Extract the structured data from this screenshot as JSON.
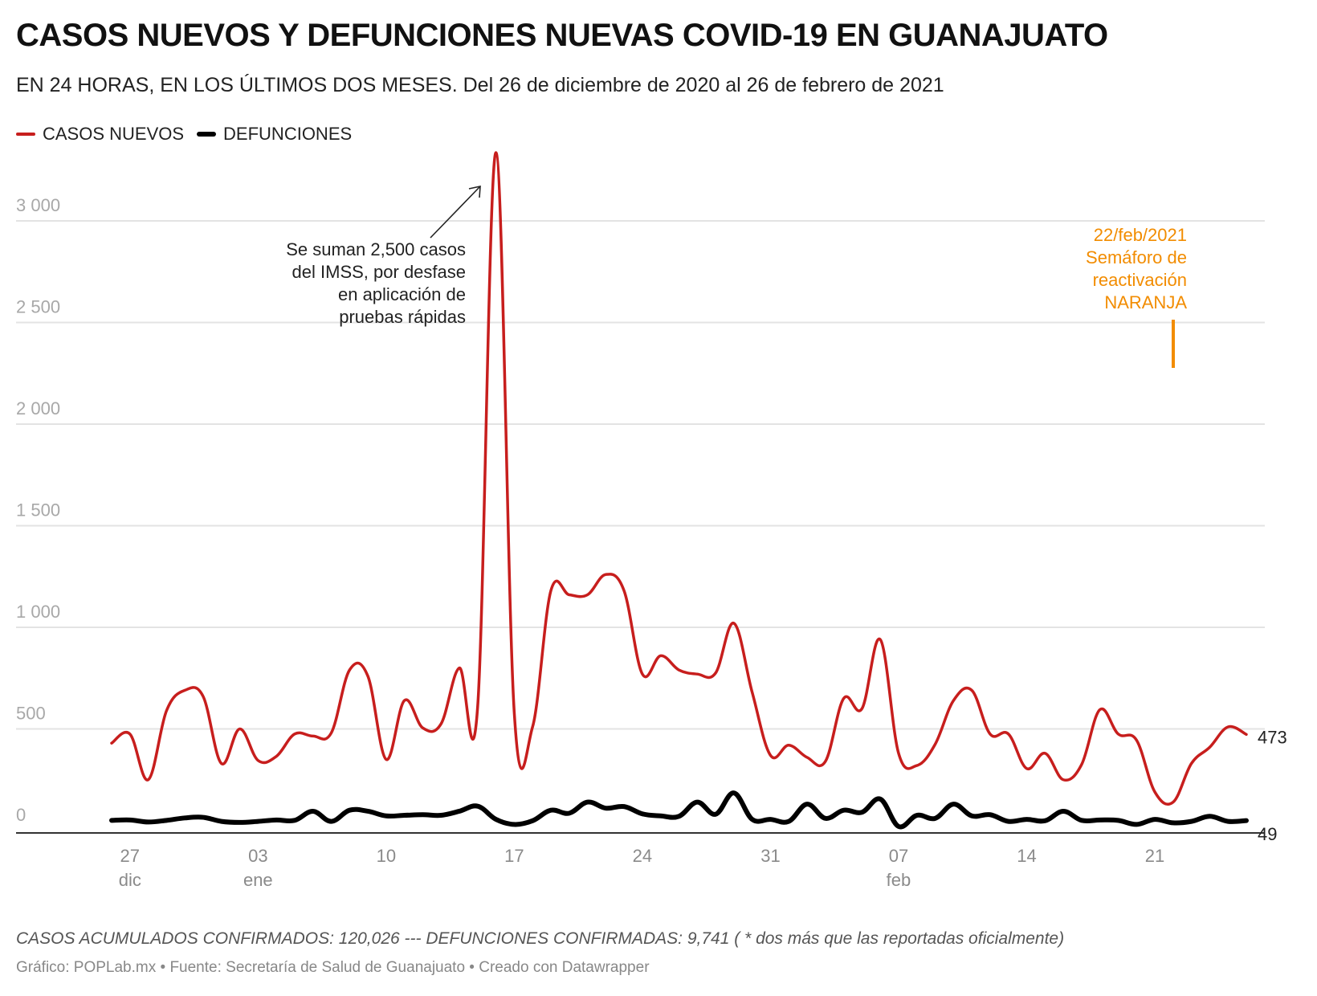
{
  "header": {
    "title": "CASOS NUEVOS Y DEFUNCIONES NUEVAS COVID-19 EN GUANAJUATO",
    "subtitle": "EN 24 HORAS, EN LOS ÚLTIMOS DOS MESES. Del 26 de diciembre de 2020 al 26 de febrero de 2021"
  },
  "legend": [
    {
      "label": "CASOS NUEVOS",
      "color": "#c71e1d"
    },
    {
      "label": "DEFUNCIONES",
      "color": "#000000"
    }
  ],
  "footer": {
    "notes": "CASOS ACUMULADOS CONFIRMADOS: 120,026 --- DEFUNCIONES CONFIRMADAS: 9,741 ( * dos más que las reportadas oficialmente)",
    "byline": "Gráfico: POPLab.mx • Fuente: Secretaría de Salud de Guanajuato • Creado con Datawrapper"
  },
  "chart_data": {
    "type": "line",
    "title": "CASOS NUEVOS Y DEFUNCIONES NUEVAS COVID-19 EN GUANAJUATO",
    "xlabel": "",
    "ylabel": "",
    "ylim": [
      0,
      3300
    ],
    "grid": true,
    "legend_position": "top-left",
    "y_ticks": [
      0,
      500,
      1000,
      1500,
      2000,
      2500,
      3000
    ],
    "y_tick_labels": [
      "0",
      "500",
      "1 000",
      "1 500",
      "2 000",
      "2 500",
      "3 000"
    ],
    "x_start": "2020-12-26",
    "x_end": "2021-02-26",
    "x_ticks": [
      {
        "day": 1,
        "label": "27",
        "sub": "dic"
      },
      {
        "day": 8,
        "label": "03",
        "sub": "ene"
      },
      {
        "day": 15,
        "label": "10",
        "sub": ""
      },
      {
        "day": 22,
        "label": "17",
        "sub": ""
      },
      {
        "day": 29,
        "label": "24",
        "sub": ""
      },
      {
        "day": 36,
        "label": "31",
        "sub": ""
      },
      {
        "day": 43,
        "label": "07",
        "sub": "feb"
      },
      {
        "day": 50,
        "label": "14",
        "sub": ""
      },
      {
        "day": 57,
        "label": "21",
        "sub": ""
      }
    ],
    "series": [
      {
        "name": "CASOS NUEVOS",
        "color": "#c71e1d",
        "end_label": "473",
        "values": [
          430,
          475,
          250,
          590,
          690,
          660,
          330,
          500,
          345,
          365,
          475,
          465,
          480,
          790,
          760,
          350,
          640,
          505,
          525,
          800,
          610,
          3336,
          580,
          510,
          1180,
          1160,
          1160,
          1260,
          1180,
          770,
          860,
          790,
          770,
          775,
          1020,
          680,
          370,
          420,
          360,
          340,
          650,
          600,
          940,
          380,
          320,
          425,
          640,
          690,
          475,
          475,
          305,
          380,
          250,
          325,
          595,
          475,
          445,
          190,
          140,
          330,
          410,
          510,
          473
        ]
      },
      {
        "name": "DEFUNCIONES",
        "color": "#000000",
        "end_label": "49",
        "values": [
          50,
          52,
          42,
          50,
          62,
          65,
          45,
          40,
          45,
          52,
          50,
          95,
          45,
          100,
          95,
          72,
          75,
          78,
          75,
          95,
          120,
          55,
          30,
          48,
          100,
          85,
          140,
          110,
          118,
          82,
          72,
          70,
          140,
          80,
          185,
          55,
          55,
          45,
          130,
          60,
          100,
          90,
          155,
          20,
          75,
          60,
          130,
          72,
          78,
          45,
          55,
          48,
          95,
          50,
          52,
          50,
          30,
          55,
          38,
          45,
          70,
          45,
          49
        ]
      }
    ],
    "annotations": [
      {
        "text": [
          "Se suman 2,500 casos",
          "del IMSS, por desfase",
          "en aplicación de",
          "pruebas rápidas"
        ],
        "color": "#222222",
        "target_day": 21,
        "arrow": true
      },
      {
        "text": [
          "22/feb/2021",
          "Semáforo de",
          "reactivación",
          "NARANJA"
        ],
        "color": "#f28c00",
        "target_day": 58,
        "marker": "vertical-tick"
      }
    ]
  }
}
